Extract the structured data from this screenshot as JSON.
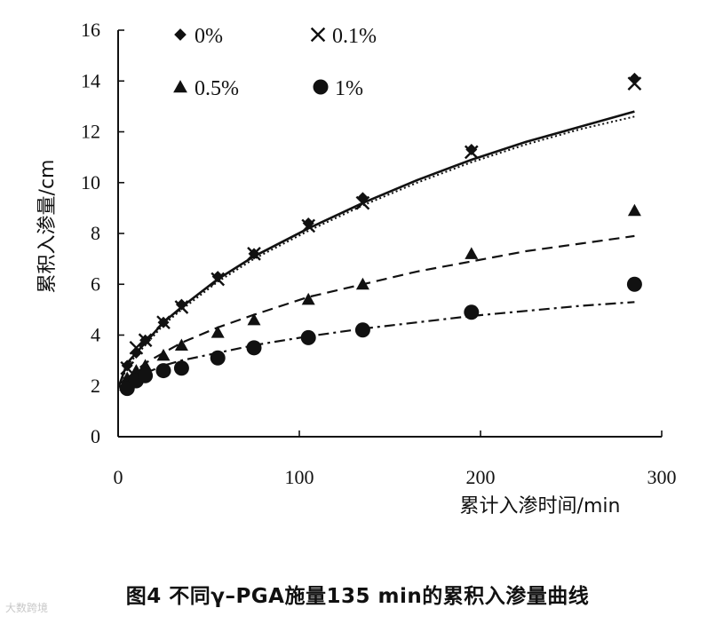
{
  "chart_data": {
    "type": "scatter",
    "title": "",
    "xlabel": "累计入渗时间/min",
    "ylabel": "累积入渗量/cm",
    "xlim": [
      0,
      300
    ],
    "ylim": [
      0,
      16
    ],
    "xticks": [
      0,
      100,
      200,
      300
    ],
    "yticks": [
      0,
      2,
      4,
      6,
      8,
      10,
      12,
      14,
      16
    ],
    "grid": false,
    "legend_position": "top-left, inside plot, 2 columns",
    "series": [
      {
        "name": "0%",
        "marker": "diamond",
        "fit_line": "solid",
        "x": [
          5,
          10,
          15,
          25,
          35,
          55,
          75,
          105,
          135,
          195,
          285
        ],
        "y": [
          2.8,
          3.3,
          3.8,
          4.5,
          5.2,
          6.3,
          7.2,
          8.4,
          9.4,
          11.3,
          14.1
        ]
      },
      {
        "name": "0.1%",
        "marker": "x",
        "fit_line": "dotted",
        "x": [
          5,
          10,
          15,
          25,
          35,
          55,
          75,
          105,
          135,
          195,
          285
        ],
        "y": [
          2.7,
          3.5,
          3.8,
          4.5,
          5.1,
          6.2,
          7.2,
          8.3,
          9.2,
          11.2,
          13.9
        ]
      },
      {
        "name": "0.5%",
        "marker": "triangle",
        "fit_line": "dashed",
        "x": [
          5,
          10,
          15,
          25,
          35,
          55,
          75,
          105,
          135,
          195,
          285
        ],
        "y": [
          2.3,
          2.6,
          2.8,
          3.2,
          3.6,
          4.1,
          4.6,
          5.4,
          6.0,
          7.2,
          8.9
        ]
      },
      {
        "name": "1%",
        "marker": "circle",
        "fit_line": "dash-dot",
        "x": [
          5,
          10,
          15,
          25,
          35,
          55,
          75,
          105,
          135,
          195,
          285
        ],
        "y": [
          1.9,
          2.2,
          2.4,
          2.6,
          2.7,
          3.1,
          3.5,
          3.9,
          4.2,
          4.9,
          6.0
        ]
      }
    ],
    "fit_curves": [
      {
        "series": "0%",
        "x": [
          0,
          5,
          10,
          15,
          25,
          35,
          55,
          75,
          105,
          135,
          165,
          195,
          225,
          255,
          285
        ],
        "y": [
          1.9,
          2.9,
          3.3,
          3.7,
          4.5,
          5.1,
          6.2,
          7.1,
          8.2,
          9.2,
          10.1,
          10.9,
          11.6,
          12.2,
          12.8
        ]
      },
      {
        "series": "0.1%",
        "x": [
          0,
          5,
          10,
          15,
          25,
          35,
          55,
          75,
          105,
          135,
          165,
          195,
          225,
          255,
          285
        ],
        "y": [
          1.8,
          2.8,
          3.2,
          3.6,
          4.4,
          5.0,
          6.1,
          7.0,
          8.1,
          9.1,
          10.0,
          10.8,
          11.5,
          12.1,
          12.6
        ]
      },
      {
        "series": "0.5%",
        "x": [
          5,
          15,
          25,
          35,
          55,
          75,
          105,
          135,
          165,
          195,
          225,
          255,
          285
        ],
        "y": [
          2.3,
          2.9,
          3.3,
          3.7,
          4.3,
          4.8,
          5.5,
          6.0,
          6.5,
          6.9,
          7.3,
          7.6,
          7.9
        ]
      },
      {
        "series": "1%",
        "x": [
          5,
          15,
          25,
          35,
          55,
          75,
          105,
          135,
          165,
          195,
          225,
          255,
          285
        ],
        "y": [
          2.0,
          2.5,
          2.8,
          3.0,
          3.3,
          3.6,
          3.95,
          4.25,
          4.5,
          4.75,
          4.95,
          5.15,
          5.3
        ]
      }
    ]
  },
  "caption": "图4 不同γ–PGA施量135 min的累积入渗量曲线",
  "watermark": "大数跨境"
}
